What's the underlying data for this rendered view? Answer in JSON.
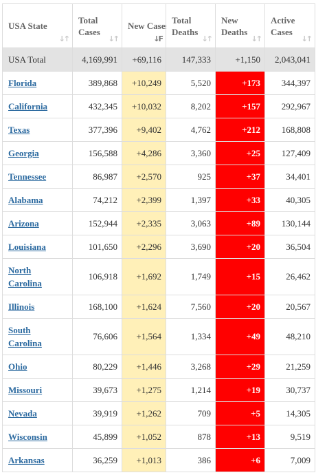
{
  "columns": [
    {
      "label": "USA State",
      "sort_icon": "sort-icon"
    },
    {
      "label": "Total Cases",
      "sort_icon": "sort-icon"
    },
    {
      "label": "New Cases",
      "sort_icon": "sort-desc-icon"
    },
    {
      "label": "Total Deaths",
      "sort_icon": "sort-icon"
    },
    {
      "label": "New Deaths",
      "sort_icon": "sort-icon"
    },
    {
      "label": "Active Cases",
      "sort_icon": "sort-icon"
    }
  ],
  "total_row": {
    "state": "USA Total",
    "total_cases": "4,169,991",
    "new_cases": "+69,116",
    "total_deaths": "147,333",
    "new_deaths": "+1,150",
    "active_cases": "2,043,041"
  },
  "rows": [
    {
      "state": "Florida",
      "total_cases": "389,868",
      "new_cases": "+10,249",
      "total_deaths": "5,520",
      "new_deaths": "+173",
      "active_cases": "344,397"
    },
    {
      "state": "California",
      "total_cases": "432,345",
      "new_cases": "+10,032",
      "total_deaths": "8,202",
      "new_deaths": "+157",
      "active_cases": "292,967"
    },
    {
      "state": "Texas",
      "total_cases": "377,396",
      "new_cases": "+9,402",
      "total_deaths": "4,762",
      "new_deaths": "+212",
      "active_cases": "168,808"
    },
    {
      "state": "Georgia",
      "total_cases": "156,588",
      "new_cases": "+4,286",
      "total_deaths": "3,360",
      "new_deaths": "+25",
      "active_cases": "127,409"
    },
    {
      "state": "Tennessee",
      "total_cases": "86,987",
      "new_cases": "+2,570",
      "total_deaths": "925",
      "new_deaths": "+37",
      "active_cases": "34,401"
    },
    {
      "state": "Alabama",
      "total_cases": "74,212",
      "new_cases": "+2,399",
      "total_deaths": "1,397",
      "new_deaths": "+33",
      "active_cases": "40,305"
    },
    {
      "state": "Arizona",
      "total_cases": "152,944",
      "new_cases": "+2,335",
      "total_deaths": "3,063",
      "new_deaths": "+89",
      "active_cases": "130,144"
    },
    {
      "state": "Louisiana",
      "total_cases": "101,650",
      "new_cases": "+2,296",
      "total_deaths": "3,690",
      "new_deaths": "+20",
      "active_cases": "36,504"
    },
    {
      "state": "North Carolina",
      "total_cases": "106,918",
      "new_cases": "+1,692",
      "total_deaths": "1,749",
      "new_deaths": "+15",
      "active_cases": "26,462"
    },
    {
      "state": "Illinois",
      "total_cases": "168,100",
      "new_cases": "+1,624",
      "total_deaths": "7,560",
      "new_deaths": "+20",
      "active_cases": "20,567"
    },
    {
      "state": "South Carolina",
      "total_cases": "76,606",
      "new_cases": "+1,564",
      "total_deaths": "1,334",
      "new_deaths": "+49",
      "active_cases": "48,210"
    },
    {
      "state": "Ohio",
      "total_cases": "80,229",
      "new_cases": "+1,446",
      "total_deaths": "3,268",
      "new_deaths": "+29",
      "active_cases": "21,259"
    },
    {
      "state": "Missouri",
      "total_cases": "39,673",
      "new_cases": "+1,275",
      "total_deaths": "1,214",
      "new_deaths": "+19",
      "active_cases": "30,737"
    },
    {
      "state": "Nevada",
      "total_cases": "39,919",
      "new_cases": "+1,262",
      "total_deaths": "709",
      "new_deaths": "+5",
      "active_cases": "14,305"
    },
    {
      "state": "Wisconsin",
      "total_cases": "45,899",
      "new_cases": "+1,052",
      "total_deaths": "878",
      "new_deaths": "+13",
      "active_cases": "9,519"
    },
    {
      "state": "Arkansas",
      "total_cases": "36,259",
      "new_cases": "+1,013",
      "total_deaths": "386",
      "new_deaths": "+6",
      "active_cases": "7,009"
    }
  ],
  "colors": {
    "new_cases_bg": "#fff0b8",
    "new_deaths_bg": "#ff0000",
    "total_row_bg": "#e3e3e3",
    "link": "#2c6aa0"
  }
}
